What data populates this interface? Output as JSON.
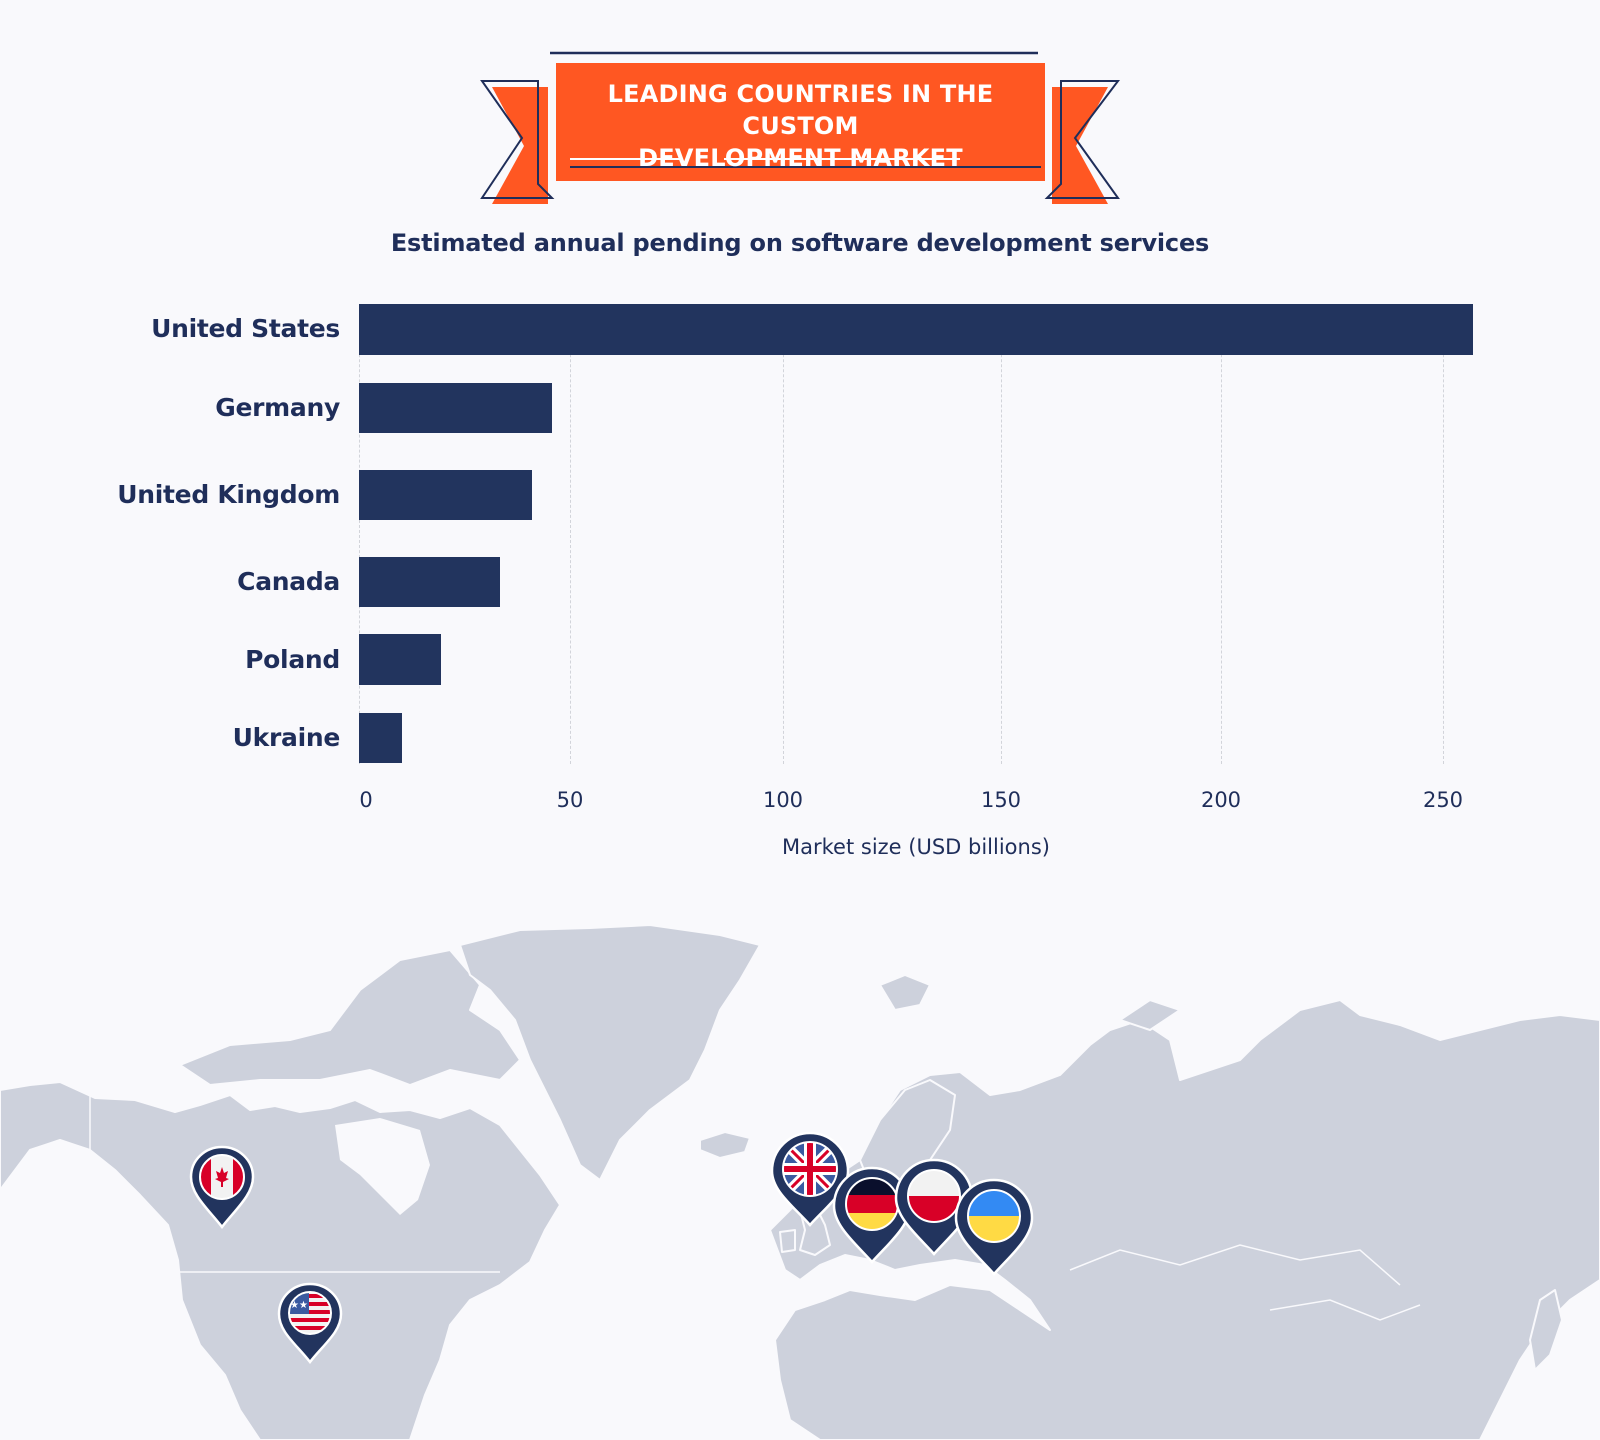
{
  "banner": {
    "title_line1": "LEADING COUNTRIES IN THE CUSTOM",
    "title_line2": "DEVELOPMENT MARKET",
    "colors": {
      "orange": "#FF5722",
      "navy": "#1F2E5A",
      "white": "#FFFFFF"
    }
  },
  "subtitle": "Estimated annual pending on software development services",
  "chart_data": {
    "type": "bar",
    "orientation": "horizontal",
    "title": "Estimated annual pending on software development services",
    "categories": [
      "United States",
      "Germany",
      "United Kingdom",
      "Canada",
      "Poland",
      "Ukraine"
    ],
    "values": [
      257,
      44.5,
      40,
      32.5,
      19,
      10
    ],
    "xlabel": "Market size (USD billions)",
    "ylabel": "",
    "xlim": [
      0,
      260
    ],
    "xticks": [
      0,
      50,
      100,
      150,
      200,
      250
    ],
    "xtick_labels": [
      "0",
      "50",
      "100",
      "150",
      "200",
      "250"
    ],
    "grid": {
      "vertical": true,
      "style": "dashed"
    },
    "legend": null,
    "bar_color": "#22345E"
  },
  "map": {
    "land_color": "#CDD1DC",
    "background": "#F9F9FC",
    "pins": [
      {
        "country": "Canada",
        "flag": "canada-flag"
      },
      {
        "country": "United States",
        "flag": "usa-flag"
      },
      {
        "country": "United Kingdom",
        "flag": "uk-flag"
      },
      {
        "country": "Germany",
        "flag": "germany-flag"
      },
      {
        "country": "Poland",
        "flag": "poland-flag"
      },
      {
        "country": "Ukraine",
        "flag": "ukraine-flag"
      }
    ]
  }
}
